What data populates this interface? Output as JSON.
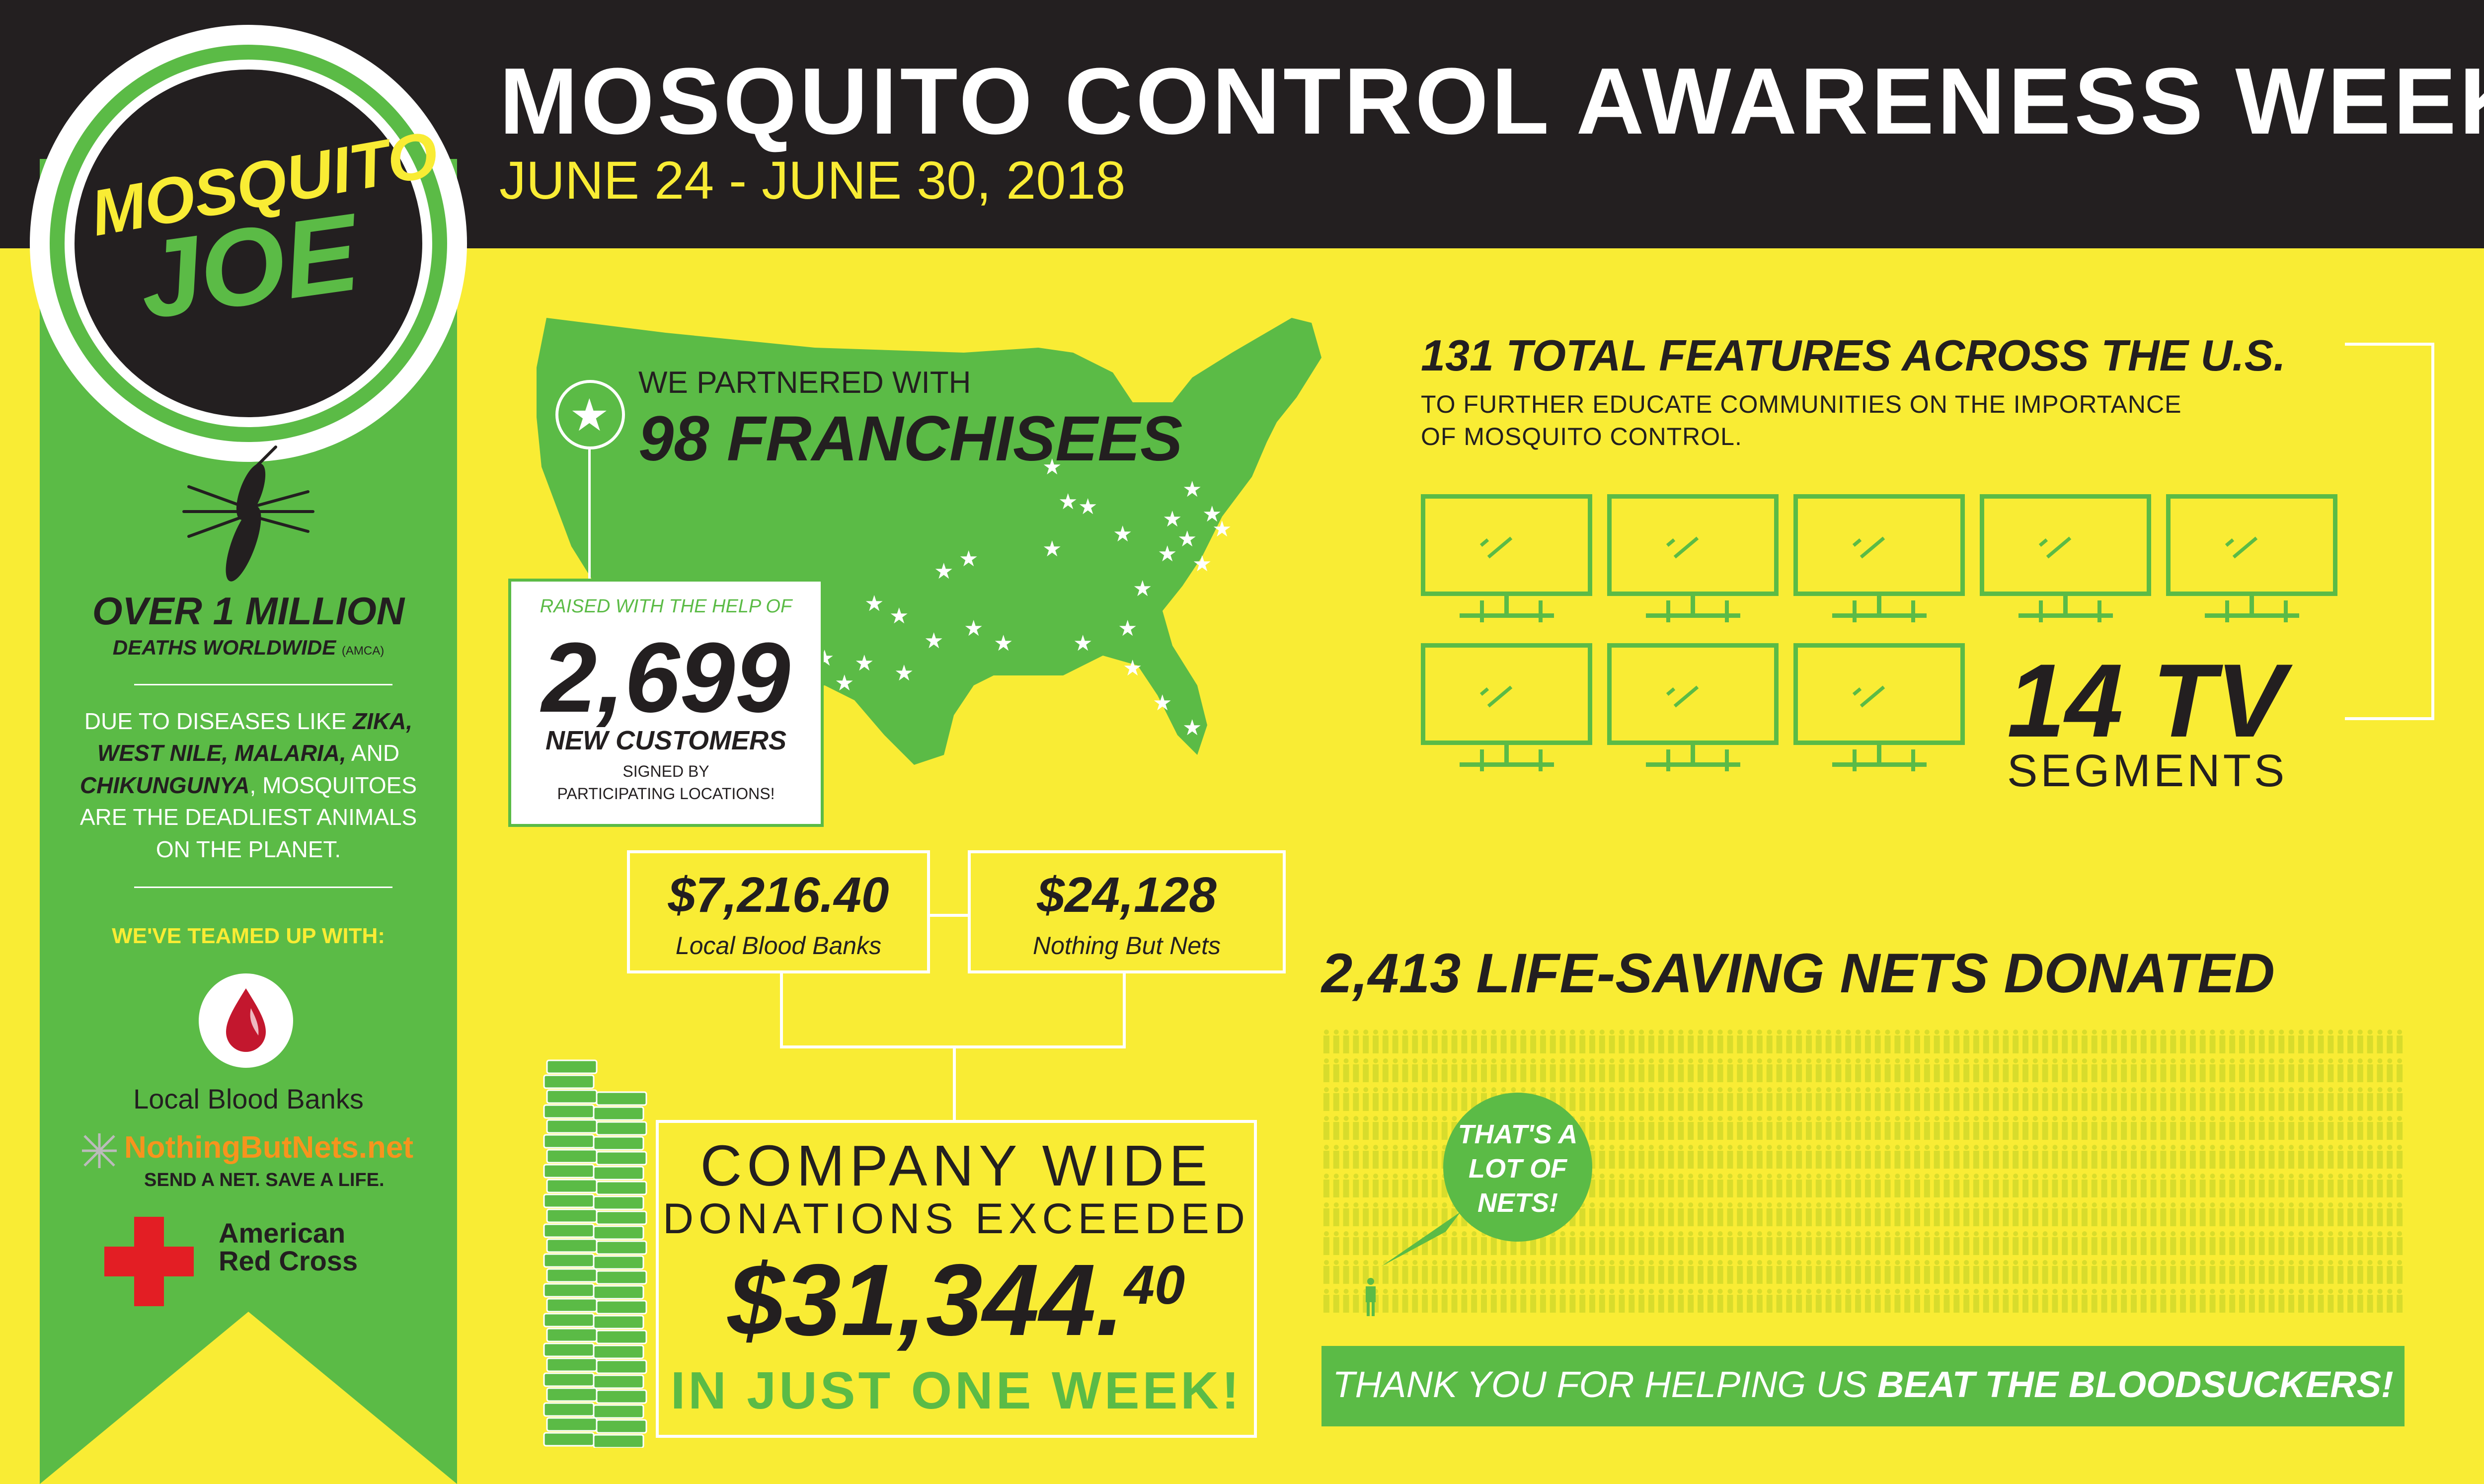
{
  "header": {
    "title": "MOSQUITO CONTROL AWARENESS WEEK",
    "dates": "JUNE 24 - JUNE 30, 2018"
  },
  "logo": {
    "line1": "MOSQUITO",
    "line2": "JOE"
  },
  "sidebar": {
    "deaths_big": "OVER 1 MILLION",
    "deaths_sub": "DEATHS WORLDWIDE",
    "deaths_source": "(AMCA)",
    "disease_pre": "DUE TO DISEASES LIKE",
    "disease_names1": "ZIKA,",
    "disease_names2": "WEST NILE, MALARIA,",
    "disease_and": "AND",
    "disease_names3": "CHIKUNGUNYA",
    "disease_post1": ", MOSQUITOES",
    "disease_post2": "ARE THE DEADLIEST ANIMALS",
    "disease_post3": "ON THE PLANET.",
    "teamed": "WE'VE TEAMED UP WITH:",
    "partner_blood": "Local Blood Banks",
    "partner_nets": "NothingButNets.net",
    "partner_nets_tag": "SEND A NET. SAVE A LIFE.",
    "partner_redcross_1": "American",
    "partner_redcross_2": "Red Cross"
  },
  "map": {
    "partnered": "WE PARTNERED WITH",
    "franchisees": "98 FRANCHISEES"
  },
  "raised": {
    "top": "RAISED WITH THE HELP OF",
    "number": "2,699",
    "label": "NEW CUSTOMERS",
    "signed1": "SIGNED BY",
    "signed2": "PARTICIPATING LOCATIONS!"
  },
  "features": {
    "title": "131 TOTAL FEATURES ACROSS THE U.S.",
    "sub1": "TO FURTHER EDUCATE COMMUNITIES ON THE IMPORTANCE",
    "sub2": "OF MOSQUITO CONTROL.",
    "tv_number": "14 TV",
    "tv_label": "SEGMENTS",
    "tv_icon_count": 8
  },
  "donations": {
    "blood_amount": "$7,216.40",
    "blood_name": "Local Blood Banks",
    "nets_amount": "$24,128",
    "nets_name": "Nothing But Nets",
    "company1": "COMPANY WIDE",
    "company2": "DONATIONS EXCEEDED",
    "company_amount": "$31,344.",
    "company_cents": "40",
    "company3": "IN JUST ONE WEEK!"
  },
  "nets": {
    "title": "2,413 LIFE-SAVING NETS DONATED",
    "bubble1": "THAT'S A",
    "bubble2": "LOT OF",
    "bubble3": "NETS!",
    "thanks_pre": "THANK YOU FOR HELPING US ",
    "thanks_bold": "BEAT THE BLOODSUCKERS!"
  },
  "colors": {
    "green": "#5bbb46",
    "yellow": "#f9ec34",
    "dark": "#231f20",
    "red": "#e31e24",
    "orange": "#f7941d"
  }
}
